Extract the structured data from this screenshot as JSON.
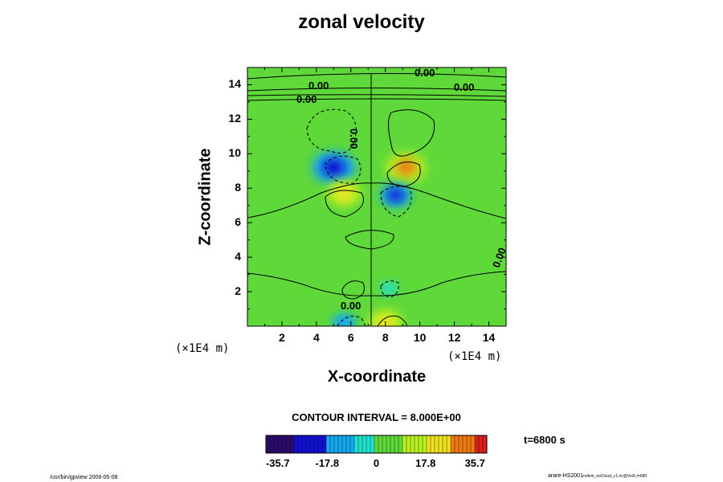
{
  "chart_data": {
    "type": "heatmap",
    "title": "zonal velocity",
    "xlabel": "X-coordinate",
    "ylabel": "Z-coordinate",
    "x_unit": "(×1E4 m)",
    "y_unit": "(×1E4 m)",
    "xlim": [
      0,
      15
    ],
    "ylim": [
      0,
      15
    ],
    "xticks": [
      2,
      4,
      6,
      8,
      10,
      12,
      14
    ],
    "yticks": [
      2,
      4,
      6,
      8,
      10,
      12,
      14
    ],
    "contour_interval": "CONTOUR INTERVAL = 8.000E+00",
    "contour_labels": [
      "0.00",
      "0.00",
      "0.00",
      "0.00",
      "0.00",
      "0.00",
      "0.00"
    ],
    "time": "t=6800 s",
    "colorbar": {
      "min": -40,
      "max": 40,
      "tick_labels": [
        "-35.7",
        "-17.8",
        "0",
        "17.8",
        "35.7"
      ],
      "tick_values": [
        -35.7,
        -17.8,
        0,
        17.8,
        35.7
      ]
    },
    "field_features": [
      {
        "x": 5.0,
        "z": 9.2,
        "value": -30,
        "sign": "negative"
      },
      {
        "x": 9.2,
        "z": 9.2,
        "value": 28,
        "sign": "positive"
      },
      {
        "x": 5.6,
        "z": 7.7,
        "value": 24,
        "sign": "positive"
      },
      {
        "x": 8.6,
        "z": 7.6,
        "value": -22,
        "sign": "negative"
      },
      {
        "x": 5.6,
        "z": 2.2,
        "value": 8,
        "sign": "positive"
      },
      {
        "x": 8.2,
        "z": 2.2,
        "value": -6,
        "sign": "negative"
      },
      {
        "x": 5.6,
        "z": 0.2,
        "value": -16,
        "sign": "negative"
      },
      {
        "x": 8.0,
        "z": 0.2,
        "value": 24,
        "sign": "positive"
      }
    ]
  },
  "footer": {
    "left": "/usr/bin/gpview 2006-05-08",
    "right_main": "arare-HS2001",
    "right_sub": "nofein_noCloud_c1.nc@VelX,t=680"
  }
}
